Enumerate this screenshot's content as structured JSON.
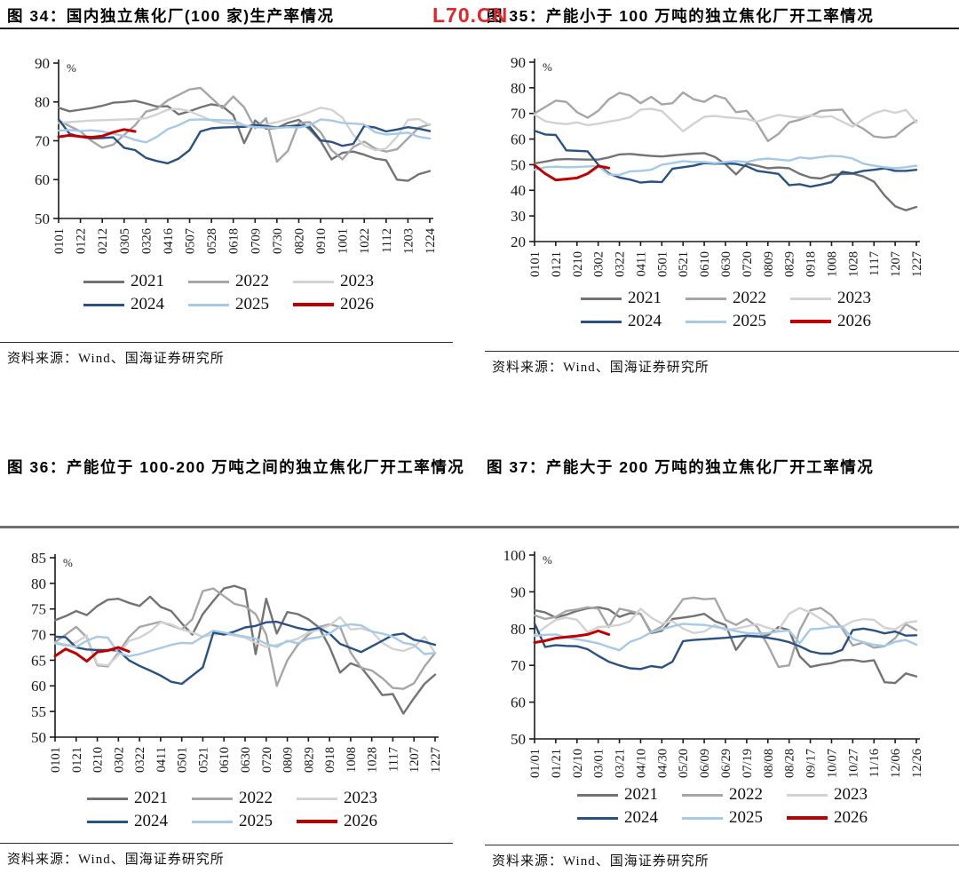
{
  "page": {
    "watermark": "L70.CN",
    "watermark_color": "#e0262a"
  },
  "colors": {
    "y2021": "#737373",
    "y2022": "#a6a6a6",
    "y2023": "#d2d2d2",
    "y2024": "#2a5183",
    "y2025": "#a6c9e6",
    "y2026": "#c00000"
  },
  "chart_data": [
    {
      "type": "line",
      "title": "图 34：国内独立焦化厂(100 家)生产率情况",
      "source": "资料来源：Wind、国海证券研究所",
      "ylabel": "%",
      "ylim": [
        50,
        90
      ],
      "y_ticks": [
        90,
        80,
        70,
        60,
        50
      ],
      "grid": false,
      "legend_position": "bottom",
      "x_tick_labels": [
        "0101",
        "0122",
        "0212",
        "0305",
        "0326",
        "0416",
        "0507",
        "0528",
        "0618",
        "0709",
        "0730",
        "0820",
        "0910",
        "1001",
        "1022",
        "1112",
        "1203",
        "1224"
      ],
      "series": [
        {
          "name": "2021",
          "color": "#737373",
          "values": [
            78.5,
            77.6,
            78.0,
            78.4,
            79.0,
            79.8,
            80.0,
            80.3,
            79.6,
            78.8,
            78.9,
            76.8,
            77.6,
            78.6,
            79.4,
            78.9,
            76.6,
            69.4,
            75.2,
            73.1,
            73.3,
            74.6,
            75.4,
            72.9,
            69.9,
            65.2,
            66.9,
            67.2,
            66.4,
            65.4,
            65.0,
            60.0,
            59.7,
            61.4,
            62.2
          ]
        },
        {
          "name": "2022",
          "color": "#a6a6a6",
          "values": [
            75.2,
            73.8,
            72.4,
            70.0,
            68.2,
            69.0,
            71.5,
            74.0,
            77.5,
            78.2,
            80.4,
            81.8,
            83.2,
            83.6,
            81.0,
            78.4,
            81.4,
            78.6,
            73.2,
            75.8,
            64.6,
            67.4,
            74.6,
            74.8,
            72.2,
            67.6,
            65.2,
            68.4,
            69.8,
            68.0,
            67.2,
            67.8,
            70.6,
            73.4,
            74.2
          ]
        },
        {
          "name": "2023",
          "color": "#d2d2d2",
          "values": [
            74.6,
            74.8,
            75.0,
            75.2,
            75.3,
            75.4,
            75.5,
            75.6,
            75.8,
            76.8,
            78.0,
            78.2,
            77.6,
            76.4,
            75.2,
            74.6,
            74.4,
            73.8,
            73.6,
            74.2,
            74.8,
            75.6,
            76.4,
            77.4,
            78.5,
            78.0,
            76.0,
            71.5,
            68.8,
            67.6,
            68.0,
            71.0,
            75.4,
            75.6,
            74.0
          ]
        },
        {
          "name": "2024",
          "color": "#2a5183",
          "values": [
            75.5,
            71.8,
            71.0,
            70.6,
            70.7,
            70.9,
            68.2,
            67.6,
            65.6,
            64.8,
            64.2,
            65.4,
            67.6,
            72.4,
            73.2,
            73.4,
            73.5,
            73.6,
            74.1,
            73.8,
            73.4,
            73.7,
            74.0,
            73.6,
            70.1,
            69.7,
            68.7,
            69.2,
            73.8,
            73.4,
            72.4,
            72.9,
            73.5,
            73.1,
            72.5
          ]
        },
        {
          "name": "2025",
          "color": "#a6c9e6",
          "values": [
            72.6,
            72.8,
            72.5,
            72.7,
            72.4,
            71.8,
            71.2,
            70.2,
            69.6,
            71.0,
            73.0,
            74.0,
            75.4,
            75.5,
            75.4,
            75.3,
            75.2,
            74.0,
            73.5,
            73.4,
            73.3,
            73.5,
            73.4,
            74.0,
            75.5,
            75.2,
            74.6,
            74.4,
            74.2,
            72.2,
            71.6,
            71.8,
            72.1,
            71.0,
            70.6
          ]
        },
        {
          "name": "2026",
          "color": "#c00000",
          "values": [
            71.0,
            71.4,
            71.1,
            70.9,
            71.2,
            72.2,
            72.9,
            72.4
          ]
        }
      ]
    },
    {
      "type": "line",
      "title": "图 35：产能小于 100 万吨的独立焦化厂开工率情况",
      "source": "资料来源：Wind、国海证券研究所",
      "ylabel": "%",
      "ylim": [
        20,
        90
      ],
      "y_ticks": [
        90,
        80,
        70,
        60,
        50,
        40,
        30,
        20
      ],
      "grid": false,
      "legend_position": "bottom",
      "x_tick_labels": [
        "0101",
        "0121",
        "0210",
        "0302",
        "0322",
        "0411",
        "0501",
        "0521",
        "0610",
        "0630",
        "0720",
        "0809",
        "0829",
        "0918",
        "1008",
        "1028",
        "1117",
        "1207",
        "1227"
      ],
      "series": [
        {
          "name": "2021",
          "color": "#737373",
          "values": [
            50.5,
            51.2,
            52.0,
            52.2,
            52.1,
            52.0,
            52.0,
            52.8,
            54.0,
            54.2,
            53.8,
            53.4,
            53.2,
            53.6,
            54.0,
            54.3,
            54.5,
            53.0,
            50.2,
            46.2,
            50.4,
            49.6,
            48.6,
            48.9,
            48.6,
            46.4,
            45.0,
            44.6,
            46.0,
            46.3,
            46.5,
            45.4,
            43.4,
            38.0,
            33.8,
            32.2,
            33.5
          ]
        },
        {
          "name": "2022",
          "color": "#a6a6a6",
          "values": [
            70.0,
            72.5,
            75.0,
            74.5,
            70.5,
            68.3,
            71.0,
            75.5,
            78.0,
            77.0,
            74.0,
            76.5,
            73.5,
            74.0,
            78.2,
            75.5,
            74.5,
            77.0,
            75.8,
            70.5,
            71.0,
            66.0,
            59.2,
            62.0,
            66.5,
            67.5,
            69.0,
            71.0,
            71.3,
            71.5,
            66.2,
            64.0,
            61.0,
            60.5,
            61.0,
            64.5,
            67.2
          ]
        },
        {
          "name": "2023",
          "color": "#d2d2d2",
          "values": [
            69.5,
            67.0,
            66.2,
            65.8,
            66.5,
            65.4,
            66.0,
            66.8,
            67.5,
            68.5,
            71.5,
            71.8,
            70.9,
            67.0,
            63.0,
            66.0,
            68.7,
            69.0,
            68.5,
            68.2,
            67.8,
            66.8,
            68.2,
            69.4,
            68.8,
            68.3,
            69.3,
            68.6,
            68.9,
            66.8,
            64.8,
            67.8,
            70.0,
            71.3,
            70.2,
            71.4,
            66.5
          ]
        },
        {
          "name": "2024",
          "color": "#2a5183",
          "values": [
            63.2,
            61.8,
            61.6,
            55.6,
            55.4,
            55.2,
            50.0,
            46.6,
            45.0,
            44.2,
            43.0,
            43.4,
            43.2,
            48.4,
            49.0,
            49.6,
            50.6,
            50.4,
            50.5,
            50.3,
            49.4,
            47.6,
            47.0,
            46.4,
            42.0,
            42.4,
            41.4,
            42.2,
            43.2,
            47.2,
            46.6,
            47.6,
            48.0,
            48.6,
            47.6,
            47.6,
            48.0
          ]
        },
        {
          "name": "2025",
          "color": "#a6c9e6",
          "values": [
            48.0,
            49.0,
            49.2,
            49.0,
            49.1,
            49.3,
            49.5,
            46.2,
            46.0,
            47.4,
            47.6,
            48.0,
            50.0,
            50.6,
            51.4,
            51.0,
            51.0,
            50.6,
            51.0,
            51.4,
            51.0,
            52.0,
            52.4,
            52.0,
            51.6,
            52.8,
            52.4,
            53.0,
            53.4,
            53.2,
            52.4,
            50.4,
            49.6,
            49.0,
            48.6,
            49.0,
            49.6
          ]
        },
        {
          "name": "2026",
          "color": "#c00000",
          "values": [
            49.8,
            46.5,
            44.0,
            44.4,
            44.8,
            46.5,
            49.5,
            48.7
          ]
        }
      ]
    },
    {
      "type": "line",
      "title": "图 36：产能位于 100-200 万吨之间的独立焦化厂开工率情况",
      "source": "资料来源：Wind、国海证券研究所",
      "ylabel": "%",
      "ylim": [
        50,
        85
      ],
      "y_ticks": [
        85,
        80,
        75,
        70,
        65,
        60,
        55,
        50
      ],
      "grid": false,
      "legend_position": "bottom",
      "x_tick_labels": [
        "0101",
        "0121",
        "0210",
        "0302",
        "0322",
        "0411",
        "0501",
        "0521",
        "0610",
        "0630",
        "0720",
        "0809",
        "0829",
        "0918",
        "1008",
        "1028",
        "1117",
        "1207",
        "1227"
      ],
      "series": [
        {
          "name": "2021",
          "color": "#737373",
          "values": [
            72.8,
            73.6,
            74.6,
            73.8,
            75.6,
            76.8,
            77.0,
            76.2,
            75.6,
            77.4,
            75.4,
            74.6,
            72.2,
            70.0,
            74.0,
            76.6,
            79.0,
            79.5,
            78.8,
            66.2,
            77.0,
            70.2,
            74.4,
            74.0,
            73.0,
            71.4,
            67.6,
            62.6,
            64.4,
            63.6,
            61.0,
            58.2,
            58.4,
            54.6,
            57.6,
            60.4,
            62.2
          ]
        },
        {
          "name": "2022",
          "color": "#a6a6a6",
          "values": [
            68.5,
            70.0,
            71.5,
            69.5,
            64.0,
            63.8,
            66.5,
            69.5,
            71.5,
            72.0,
            72.5,
            71.8,
            71.0,
            73.0,
            78.5,
            79.0,
            77.5,
            76.0,
            75.5,
            74.0,
            70.0,
            60.0,
            65.0,
            68.0,
            70.0,
            71.5,
            72.0,
            71.5,
            66.5,
            63.5,
            63.0,
            61.5,
            59.6,
            59.4,
            60.5,
            63.8,
            66.4
          ]
        },
        {
          "name": "2023",
          "color": "#d2d2d2",
          "values": [
            68.3,
            67.8,
            68.5,
            69.8,
            64.2,
            64.0,
            66.0,
            68.8,
            69.4,
            70.6,
            72.4,
            72.0,
            71.0,
            70.4,
            69.6,
            70.0,
            70.2,
            69.8,
            69.4,
            68.4,
            67.6,
            68.0,
            68.6,
            69.2,
            70.4,
            71.0,
            71.8,
            73.4,
            71.0,
            71.2,
            70.6,
            68.4,
            67.2,
            66.8,
            67.6,
            69.6,
            66.4
          ]
        },
        {
          "name": "2024",
          "color": "#2a5183",
          "values": [
            69.6,
            69.5,
            67.5,
            67.1,
            67.0,
            67.0,
            66.9,
            65.0,
            63.9,
            63.0,
            62.0,
            60.8,
            60.4,
            62.0,
            63.6,
            70.4,
            70.0,
            70.6,
            71.4,
            71.7,
            72.4,
            72.5,
            71.9,
            71.3,
            70.9,
            71.3,
            70.2,
            68.2,
            67.4,
            66.6,
            67.7,
            68.8,
            69.9,
            70.2,
            69.0,
            68.6,
            68.0
          ]
        },
        {
          "name": "2025",
          "color": "#a6c9e6",
          "values": [
            68.4,
            68.0,
            67.6,
            68.8,
            69.6,
            69.4,
            66.4,
            65.8,
            66.2,
            66.8,
            67.4,
            68.0,
            68.4,
            68.3,
            69.6,
            70.8,
            70.4,
            70.0,
            69.6,
            69.2,
            68.2,
            67.6,
            68.8,
            68.3,
            69.2,
            69.5,
            70.2,
            71.6,
            72.0,
            71.8,
            70.6,
            70.2,
            69.6,
            68.4,
            68.0,
            66.2,
            66.4
          ]
        },
        {
          "name": "2026",
          "color": "#c00000",
          "values": [
            65.8,
            67.2,
            66.3,
            64.8,
            66.6,
            66.9,
            67.5,
            66.7
          ]
        }
      ]
    },
    {
      "type": "line",
      "title": "图 37：产能大于 200 万吨的独立焦化厂开工率情况",
      "source": "资料来源：Wind、国海证券研究所",
      "ylabel": "%",
      "ylim": [
        50,
        100
      ],
      "y_ticks": [
        100,
        90,
        80,
        70,
        60,
        50
      ],
      "grid": false,
      "legend_position": "bottom",
      "x_tick_labels": [
        "01/01",
        "01/21",
        "02/10",
        "03/01",
        "03/21",
        "04/10",
        "04/30",
        "05/20",
        "06/09",
        "06/29",
        "07/19",
        "08/08",
        "08/28",
        "09/17",
        "10/07",
        "10/27",
        "11/16",
        "12/06",
        "12/26"
      ],
      "series": [
        {
          "name": "2021",
          "color": "#737373",
          "values": [
            85.0,
            84.4,
            83.0,
            83.8,
            84.8,
            85.5,
            85.8,
            85.2,
            83.2,
            84.2,
            84.0,
            78.8,
            79.4,
            82.6,
            83.0,
            83.4,
            84.0,
            82.0,
            81.0,
            74.2,
            78.0,
            77.8,
            78.2,
            80.4,
            79.6,
            72.5,
            69.6,
            70.2,
            70.6,
            71.4,
            71.5,
            71.0,
            71.4,
            65.4,
            65.2,
            67.8,
            67.0
          ]
        },
        {
          "name": "2022",
          "color": "#a6a6a6",
          "values": [
            83.6,
            82.6,
            83.2,
            84.8,
            85.2,
            85.8,
            85.4,
            80.4,
            85.4,
            84.8,
            84.0,
            79.0,
            80.6,
            84.0,
            88.0,
            88.4,
            88.0,
            88.2,
            82.4,
            81.0,
            82.6,
            80.4,
            75.4,
            69.6,
            70.0,
            79.6,
            85.0,
            85.6,
            83.6,
            80.0,
            75.4,
            76.2,
            74.8,
            75.2,
            77.4,
            81.2,
            79.6
          ]
        },
        {
          "name": "2023",
          "color": "#d2d2d2",
          "values": [
            78.2,
            80.4,
            82.4,
            83.0,
            82.4,
            79.0,
            80.4,
            80.6,
            81.0,
            82.0,
            85.4,
            83.0,
            81.4,
            82.0,
            80.0,
            78.8,
            79.2,
            81.0,
            79.6,
            80.0,
            80.6,
            81.2,
            80.2,
            79.6,
            84.0,
            85.6,
            84.4,
            82.6,
            80.6,
            80.4,
            82.0,
            82.6,
            82.4,
            80.2,
            79.8,
            81.6,
            82.0
          ]
        },
        {
          "name": "2024",
          "color": "#2a5183",
          "values": [
            81.4,
            75.0,
            75.5,
            75.3,
            75.2,
            74.4,
            72.6,
            71.0,
            70.0,
            69.2,
            69.0,
            69.8,
            69.4,
            71.0,
            76.6,
            76.9,
            77.1,
            77.3,
            77.5,
            77.8,
            78.1,
            77.9,
            77.5,
            77.0,
            76.3,
            75.2,
            73.8,
            73.2,
            73.2,
            74.2,
            79.6,
            80.0,
            79.5,
            78.7,
            79.2,
            78.1,
            78.2
          ]
        },
        {
          "name": "2025",
          "color": "#a6c9e6",
          "values": [
            78.0,
            78.3,
            78.4,
            77.6,
            77.1,
            76.6,
            76.0,
            75.0,
            74.1,
            76.4,
            77.4,
            79.0,
            79.8,
            80.6,
            81.3,
            81.1,
            81.0,
            80.5,
            80.0,
            79.3,
            78.8,
            78.6,
            78.8,
            79.2,
            79.5,
            76.0,
            79.8,
            80.0,
            80.4,
            80.6,
            77.2,
            76.3,
            75.6,
            75.3,
            76.4,
            76.9,
            75.6
          ]
        },
        {
          "name": "2026",
          "color": "#c00000",
          "values": [
            76.2,
            76.7,
            77.4,
            77.7,
            78.0,
            78.4,
            79.4,
            78.4
          ]
        }
      ]
    }
  ]
}
